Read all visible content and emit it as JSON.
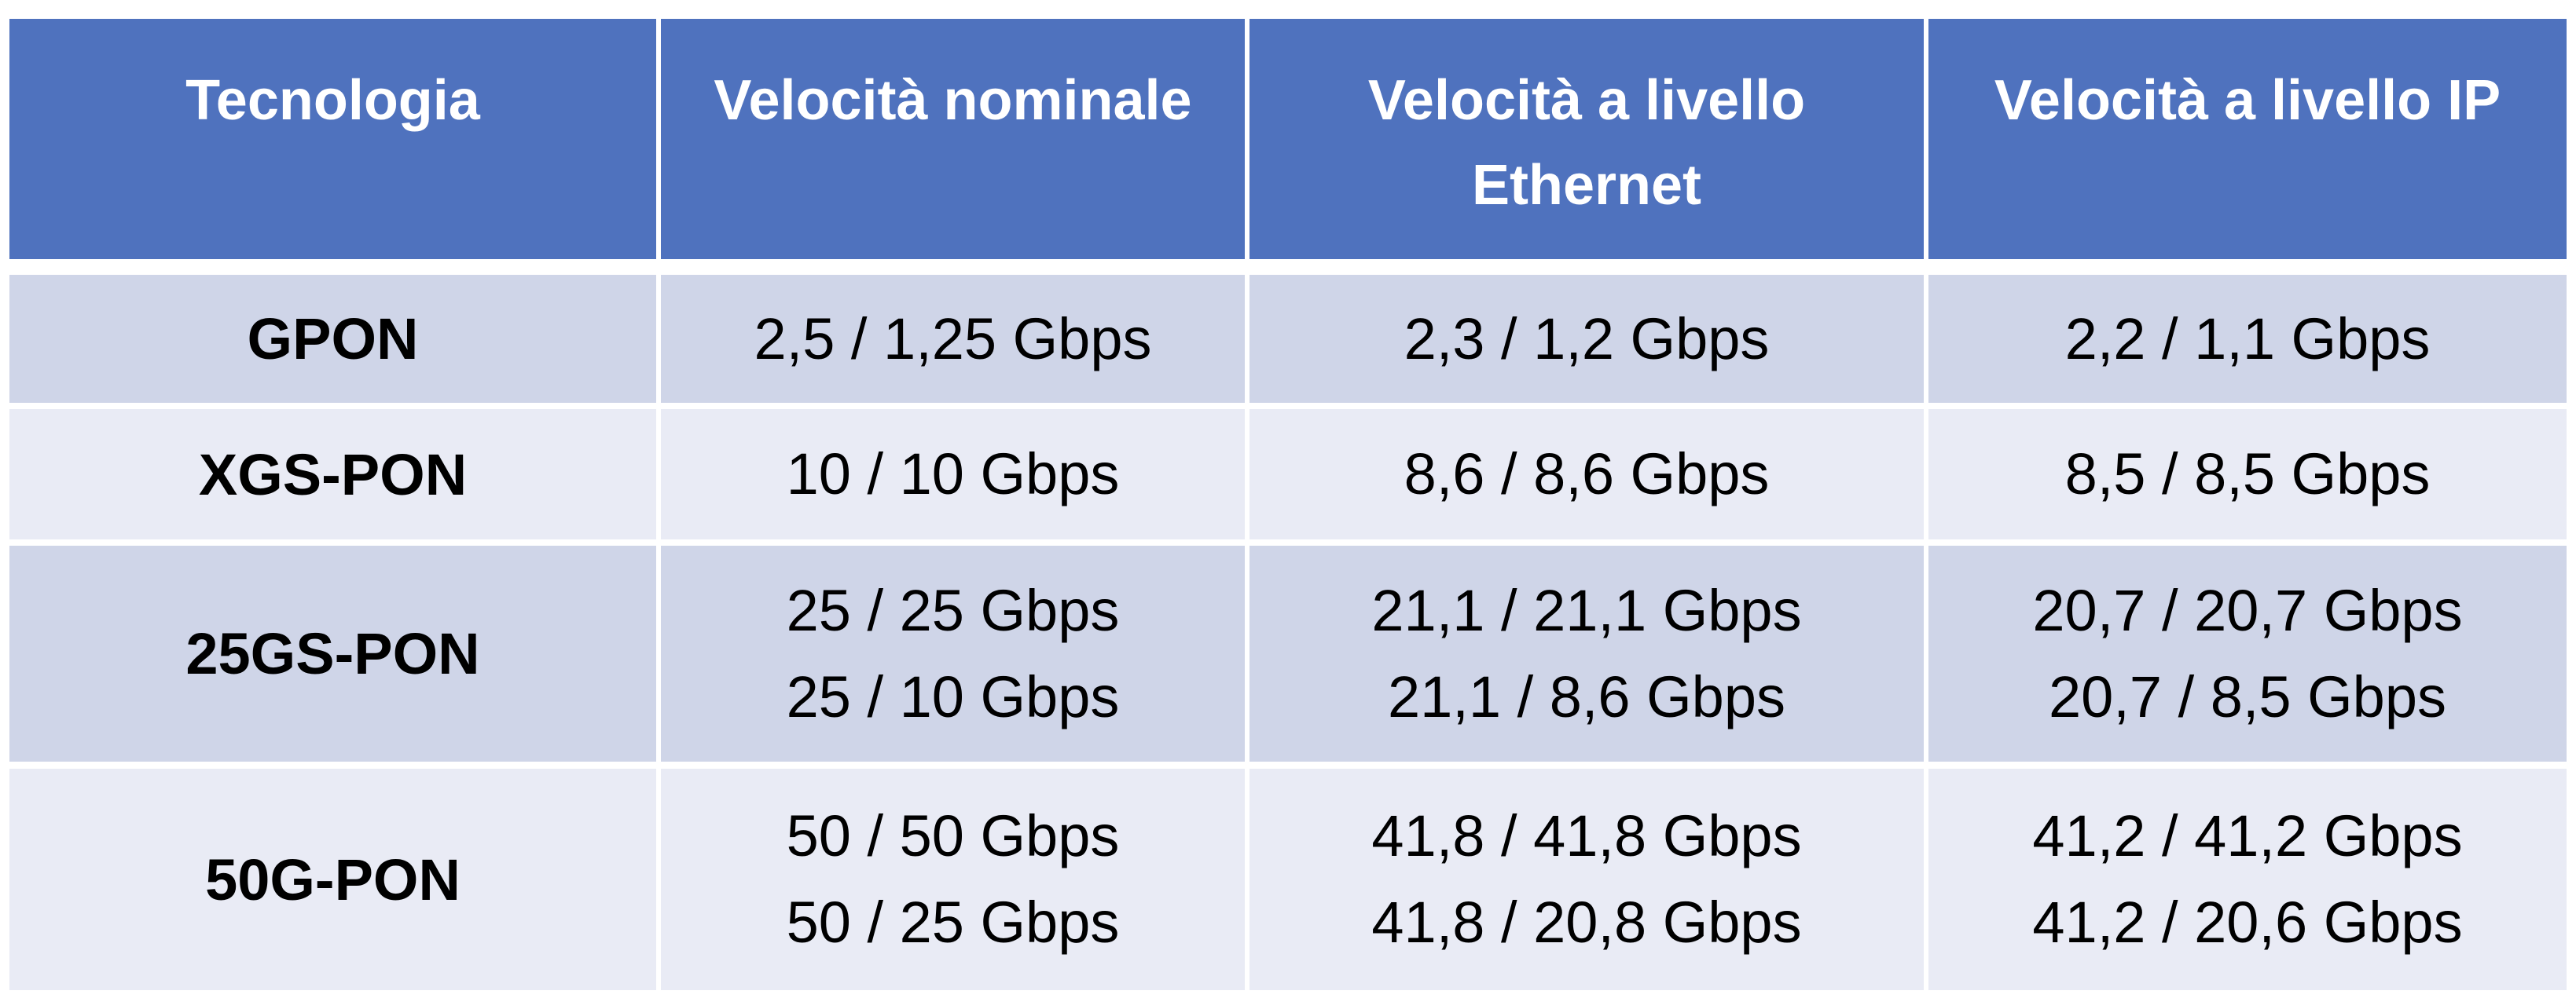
{
  "table": {
    "headers": [
      "Tecnologia",
      "Velocità nominale",
      "Velocità a livello Ethernet",
      "Velocità a livello IP"
    ],
    "rows": [
      {
        "technology": "GPON",
        "nominal": [
          "2,5 / 1,25 Gbps"
        ],
        "ethernet": [
          "2,3 / 1,2 Gbps"
        ],
        "ip": [
          "2,2 / 1,1 Gbps"
        ]
      },
      {
        "technology": "XGS-PON",
        "nominal": [
          "10 / 10 Gbps"
        ],
        "ethernet": [
          "8,6 / 8,6 Gbps"
        ],
        "ip": [
          "8,5 / 8,5 Gbps"
        ]
      },
      {
        "technology": "25GS-PON",
        "nominal": [
          "25 / 25 Gbps",
          "25 / 10 Gbps"
        ],
        "ethernet": [
          "21,1 / 21,1 Gbps",
          "21,1 / 8,6 Gbps"
        ],
        "ip": [
          "20,7 / 20,7 Gbps",
          "20,7 / 8,5 Gbps"
        ]
      },
      {
        "technology": "50G-PON",
        "nominal": [
          "50 / 50 Gbps",
          "50 / 25 Gbps"
        ],
        "ethernet": [
          "41,8 / 41,8 Gbps",
          "41,8 / 20,8 Gbps"
        ],
        "ip": [
          "41,2 / 41,2 Gbps",
          "41,2 / 20,6 Gbps"
        ]
      }
    ]
  }
}
